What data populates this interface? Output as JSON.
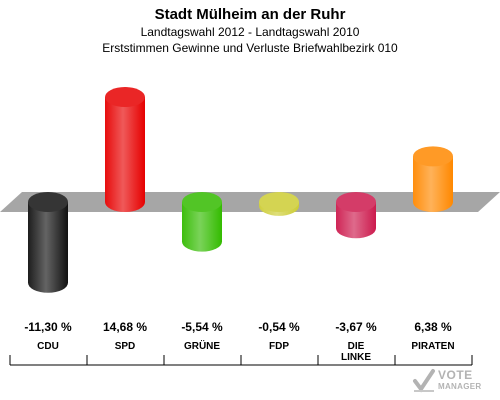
{
  "header": {
    "title": "Stadt Mülheim an der Ruhr",
    "subtitle": "Landtagswahl 2012 - Landtagswahl 2010",
    "subtitle2": "Erststimmen Gewinne und Verluste Briefwahlbezirk 010"
  },
  "watermark": {
    "line1": "VOTE",
    "line2": "MANAGER"
  },
  "chart_data": {
    "type": "bar",
    "title": "Stadt Mülheim an der Ruhr",
    "subtitle": "Landtagswahl 2012 - Landtagswahl 2010 / Erststimmen Gewinne und Verluste Briefwahlbezirk 010",
    "categories": [
      "CDU",
      "SPD",
      "GRÜNE",
      "FDP",
      "DIE LINKE",
      "PIRATEN"
    ],
    "category_lines": [
      [
        "CDU"
      ],
      [
        "SPD"
      ],
      [
        "GRÜNE"
      ],
      [
        "FDP"
      ],
      [
        "DIE",
        "LINKE"
      ],
      [
        "PIRATEN"
      ]
    ],
    "values": [
      -11.3,
      14.68,
      -5.54,
      -0.54,
      -3.67,
      6.38
    ],
    "value_labels": [
      "-11,30 %",
      "14,68 %",
      "-5,54 %",
      "-0,54 %",
      "-3,67 %",
      "6,38 %"
    ],
    "colors": [
      "#111111",
      "#e60000",
      "#33bb00",
      "#cccc33",
      "#cc1a4d",
      "#ff8800"
    ],
    "ylim": [
      -12,
      16
    ],
    "grid": false,
    "legend": "none"
  }
}
